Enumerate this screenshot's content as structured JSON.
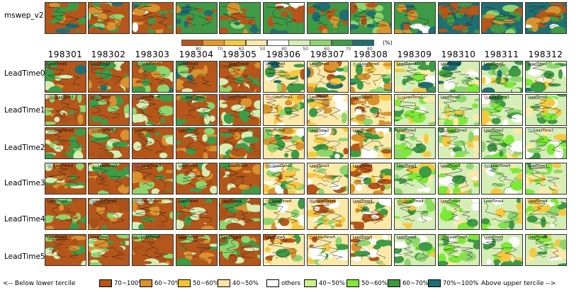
{
  "header_row_label": "mswep_v2",
  "colorbar": {
    "unit": "(%)",
    "ticks": [
      "80",
      "70",
      "60",
      "50",
      "40",
      "50",
      "60",
      "70",
      "80"
    ],
    "colors": [
      "#b5561a",
      "#e49a2b",
      "#f5c840",
      "#fbe9a8",
      "#ffffff",
      "#d5eeb5",
      "#8ed56e",
      "#3f9a45",
      "#1f6f72"
    ]
  },
  "columns": [
    "198301",
    "198302",
    "198303",
    "198304",
    "198305",
    "198306",
    "198307",
    "198308",
    "198309",
    "198310",
    "198311",
    "198312"
  ],
  "rows": [
    {
      "label": "LeadTime0",
      "panel_titles": [
        "LeadTime0",
        "LeadTime0",
        "MarLeadTime0",
        "LeadTime0",
        "MayLeadTime0",
        "LeadTime0",
        "LeadTime0",
        "AugLeadTime0",
        "LeadTime0",
        "LeadTime0",
        "LeadTime0",
        "LeadTime0"
      ]
    },
    {
      "label": "LeadTime1",
      "panel_titles": [
        "DecLeadTime1",
        "LeadTime1",
        "FebLeadTime1",
        "MarLeadTime1",
        "AprLeadTime1",
        "MayLeadTime1",
        "LeadTime1",
        "LeadTime1",
        "AugLeadTime1",
        "LeadTime1",
        "OctLeadTime1",
        "LeadTime1"
      ]
    },
    {
      "label": "LeadTime2",
      "panel_titles": [
        "NovLeadTime2",
        "DecLeadTime2",
        "LeadTime2",
        "LeadTime2",
        "MarLeadTime2",
        "LeadTime2",
        "LeadTime2",
        "LeadTime2",
        "LeadTime2",
        "AugLeadTime2",
        "LeadTime2",
        "OctLeadTime2"
      ]
    },
    {
      "label": "LeadTime3",
      "panel_titles": [
        "OctLeadTime3",
        "NovLeadTime3",
        "DecLeadTime3",
        "LeadTime3",
        "FebLeadTime3",
        "MarLeadTime3",
        "LeadTime3",
        "LeadTime3",
        "LeadTime3",
        "LeadTime3",
        "AugLeadTime3",
        "LeadTime3"
      ]
    },
    {
      "label": "LeadTime4",
      "panel_titles": [
        "LeadTime4",
        "OctLeadTime4",
        "NovLeadTime4",
        "LeadTime4",
        "LeadTime4",
        "FebLeadTime4",
        "MarLeadTime4",
        "LeadTime4",
        "MayLeadTime4",
        "LeadTime4",
        "LeadTime4",
        "LeadTime4"
      ]
    },
    {
      "label": "LeadTime5",
      "panel_titles": [
        "LeadTime5",
        "LeadTime5",
        "OctLeadTime5",
        "LeadTime5",
        "LeadTime5",
        "LeadTime5",
        "FebLeadTime5",
        "LeadTime5",
        "LeadTime5",
        "MayLeadTime5",
        "LeadTime5",
        "LeadTime5"
      ]
    }
  ],
  "legend": {
    "left_text": "<-- Below lower tercile",
    "right_text": "Above upper tercile -->",
    "items": [
      {
        "label": "70~100%",
        "color": "#b5561a"
      },
      {
        "label": "60~70%",
        "color": "#d9922e"
      },
      {
        "label": "50~60%",
        "color": "#f5c432"
      },
      {
        "label": "40~50%",
        "color": "#fbe3a0"
      },
      {
        "label": "others",
        "color": "#ffffff"
      },
      {
        "label": "40~50%",
        "color": "#ccf08a"
      },
      {
        "label": "50~60%",
        "color": "#7ee838"
      },
      {
        "label": "60~70%",
        "color": "#3a9a3a"
      },
      {
        "label": "70%~100%",
        "color": "#1f6f72"
      }
    ]
  }
}
